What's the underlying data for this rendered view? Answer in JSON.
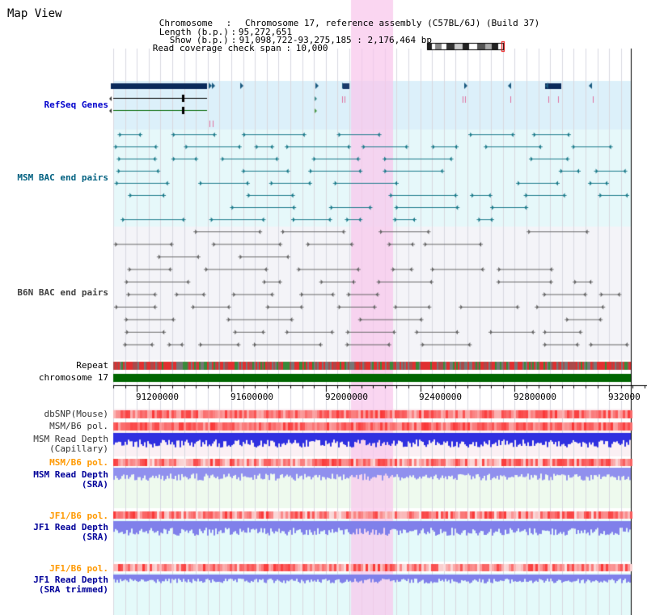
{
  "view_title": "Map View",
  "info": {
    "chromosome_key": "Chromosome",
    "chromosome_value": "Chromosome 17, reference assembly (C57BL/6J) (Build 37)",
    "length_key": "Length (b.p.)",
    "length_value": "95,272,651",
    "show_key": "Show (b.p.)",
    "show_value": "91,098,722-93,275,185 : 2,176,464 bp",
    "coverage_key": "Read coverage check span",
    "coverage_value": "10,000"
  },
  "colors": {
    "refseq_bg": "#dcf0fa",
    "msm_bac_bg": "#e6f8fa",
    "b6n_bac_bg": "#f4f4f8",
    "highlight": "#f8d8f0",
    "chromosome_bar": "#006600",
    "refseq_label": "#0000cc",
    "msm_bac_label": "#006080",
    "b6n_bac_label": "#404040",
    "orange_label": "#ff9900",
    "blue_label": "#000099"
  },
  "tracks": {
    "refseq": "RefSeq Genes",
    "msm_bac": "MSM BAC end pairs",
    "b6n_bac": "B6N BAC end pairs",
    "repeat": "Repeat",
    "chromosome": "chromosome 17",
    "dbsnp": "dbSNP(Mouse)",
    "msm_b6_pol": "MSM/B6 pol.",
    "msm_read_depth_cap_1": "MSM Read Depth",
    "msm_read_depth_cap_2": "(Capillary)",
    "msm_b6_pol_2": "MSM/B6 pol.",
    "msm_read_depth_sra_1": "MSM Read Depth",
    "msm_read_depth_sra_2": "(SRA)",
    "jf1_b6_pol": "JF1/B6 pol.",
    "jf1_read_depth_sra_1": "JF1 Read Depth",
    "jf1_read_depth_sra_2": "(SRA)",
    "jf1_b6_pol_2": "JF1/B6 pol.",
    "jf1_read_depth_trim_1": "JF1 Read Depth",
    "jf1_read_depth_trim_2": "(SRA trimmed)"
  },
  "axis": {
    "ticks": [
      "91200000",
      "91600000",
      "92000000",
      "92400000",
      "92800000",
      "932000"
    ]
  }
}
